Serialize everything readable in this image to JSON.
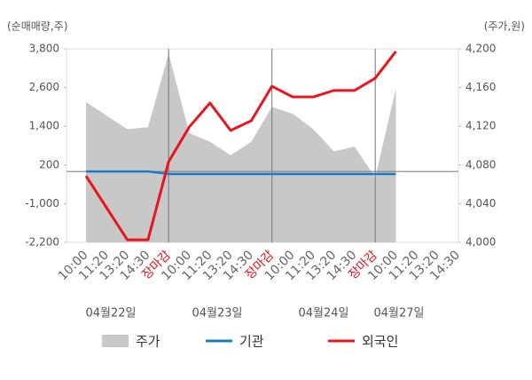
{
  "chart_data": {
    "type": "line",
    "y_axis_label": "(순매매량,주)",
    "y2_axis_label": "(주가,원)",
    "categories": [
      "10:00",
      "11:20",
      "13:20",
      "14:30",
      "장마감",
      "10:00",
      "11:20",
      "13:20",
      "14:30",
      "장마감",
      "10:00",
      "11:20",
      "13:20",
      "14:30",
      "장마감",
      "10:00",
      "11:20",
      "13:20",
      "14:30"
    ],
    "dates": [
      "04월22일",
      "04월23일",
      "04월24일",
      "04월27일"
    ],
    "ylim": [
      -2200,
      3800
    ],
    "yticks": [
      {
        "value": -2200,
        "label": "-2,200"
      },
      {
        "value": -1000,
        "label": "-1,000"
      },
      200,
      {
        "value": 1400,
        "label": "1,400"
      },
      {
        "value": 2600,
        "label": "2,600"
      },
      {
        "value": 3800,
        "label": "3,800"
      }
    ],
    "y2lim": [
      4000,
      4200
    ],
    "y2ticks": [
      {
        "value": 4000,
        "label": "4,000"
      },
      {
        "value": 4040,
        "label": "4,040"
      },
      {
        "value": 4080,
        "label": "4,080"
      },
      {
        "value": 4120,
        "label": "4,120"
      },
      {
        "value": 4160,
        "label": "4,160"
      },
      {
        "value": 4200,
        "label": "4,200"
      }
    ],
    "series": [
      {
        "name": "주가",
        "color": "#c8c8c8",
        "axis": "y2",
        "kind": "area",
        "values": [
          4145,
          4131,
          4117,
          4119,
          4195,
          4113,
          4104,
          4090,
          4104,
          4140,
          4133,
          4117,
          4094,
          4099,
          4067,
          4159,
          null,
          null,
          null
        ]
      },
      {
        "name": "기관",
        "color": "#1a7cc9",
        "kind": "line",
        "values": [
          0,
          0,
          0,
          0,
          -80,
          -80,
          -80,
          -80,
          -80,
          -80,
          -80,
          -80,
          -80,
          -80,
          -80,
          -80,
          null,
          null,
          null
        ]
      },
      {
        "name": "외국인",
        "color": "#e8141e",
        "kind": "line",
        "values": [
          -140,
          -1130,
          -2120,
          -2120,
          300,
          1380,
          2120,
          1270,
          1570,
          2640,
          2310,
          2310,
          2510,
          2510,
          2890,
          3720,
          null,
          null,
          null
        ]
      }
    ]
  }
}
